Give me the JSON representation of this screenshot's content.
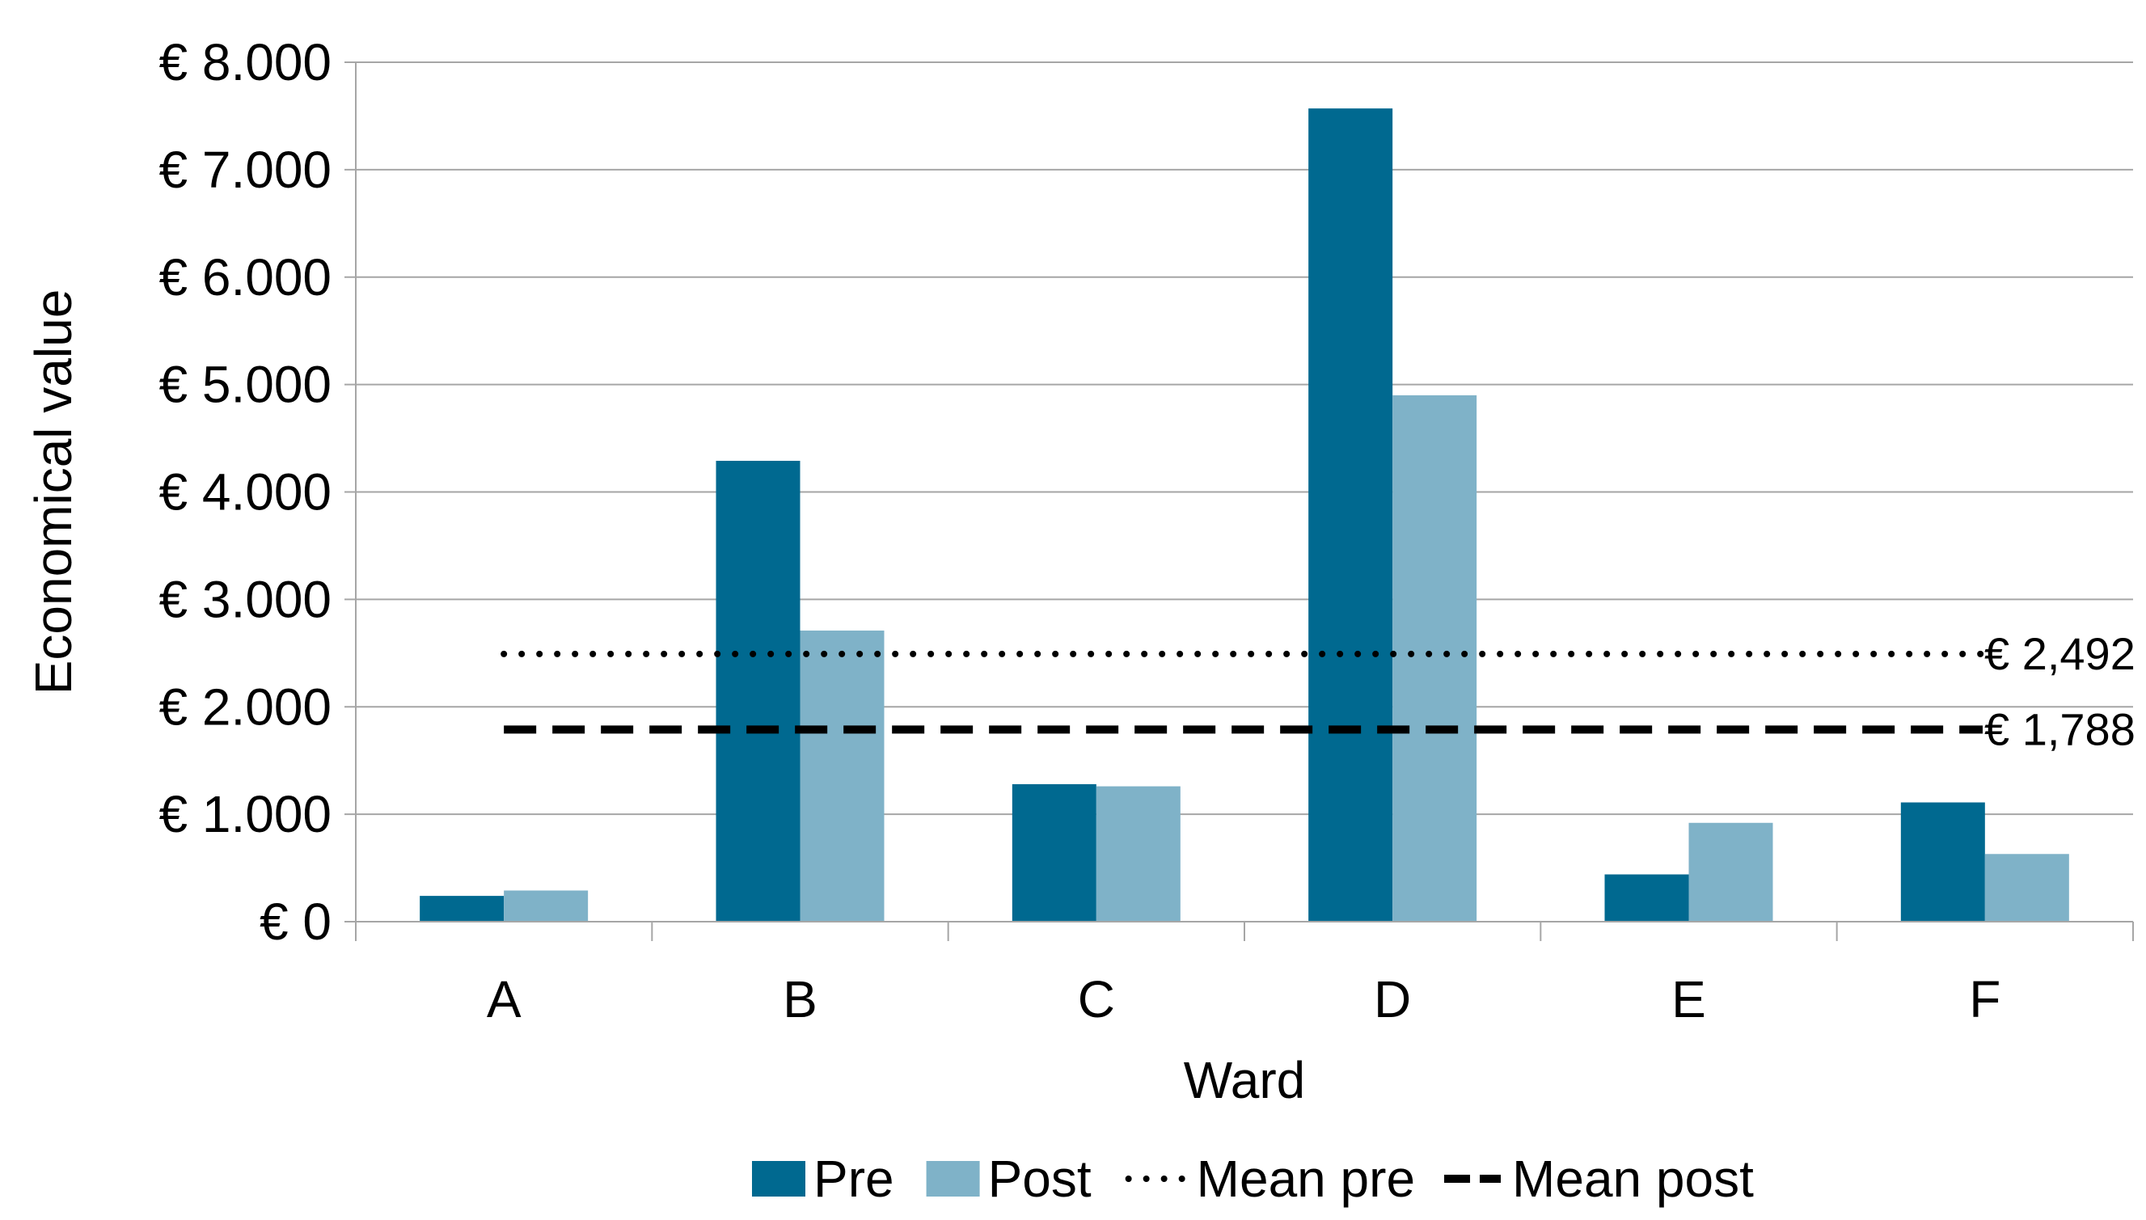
{
  "chart_data": {
    "type": "bar",
    "title": "",
    "xlabel": "Ward",
    "ylabel": "Economical value",
    "categories": [
      "A",
      "B",
      "C",
      "D",
      "E",
      "F"
    ],
    "series": [
      {
        "name": "Pre",
        "color": "#006990",
        "values": [
          240,
          4290,
          1280,
          7570,
          440,
          1110
        ]
      },
      {
        "name": "Post",
        "color": "#7fb2c8",
        "values": [
          290,
          2710,
          1260,
          4900,
          920,
          630
        ]
      }
    ],
    "reference_lines": [
      {
        "name": "Mean pre",
        "value": 2492,
        "label": "€ 2,492",
        "style": "dotted",
        "color": "#000000"
      },
      {
        "name": "Mean post",
        "value": 1788,
        "label": "€ 1,788",
        "style": "dashed",
        "color": "#000000"
      }
    ],
    "ylim": [
      0,
      8000
    ],
    "y_ticks": [
      0,
      1000,
      2000,
      3000,
      4000,
      5000,
      6000,
      7000,
      8000
    ],
    "y_tick_labels": [
      "€ 0",
      "€ 1.000",
      "€ 2.000",
      "€ 3.000",
      "€ 4.000",
      "€ 5.000",
      "€ 6.000",
      "€ 7.000",
      "€ 8.000"
    ],
    "grid": true,
    "legend_position": "bottom",
    "gridline_color": "#a6a6a6",
    "axis_color": "#a6a6a6"
  }
}
